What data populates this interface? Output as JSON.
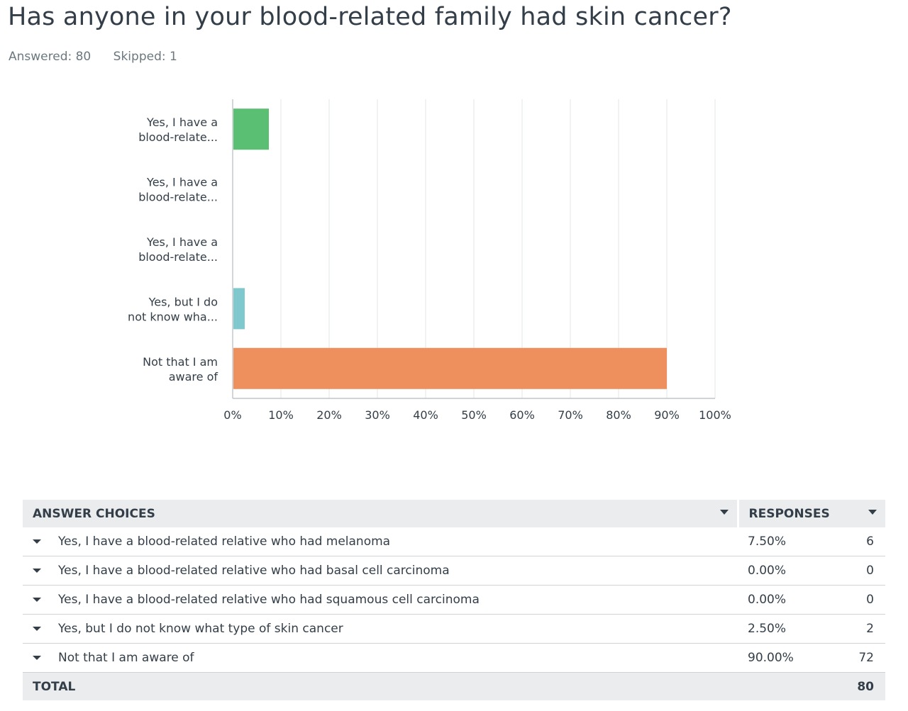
{
  "question": {
    "title": "Has anyone in your blood-related family had skin cancer?",
    "answered": "Answered: 80",
    "skipped": "Skipped: 1"
  },
  "chart_data": {
    "type": "bar",
    "orientation": "horizontal",
    "categories": [
      [
        "Yes, I have a",
        "blood-relate..."
      ],
      [
        "Yes, I have a",
        "blood-relate..."
      ],
      [
        "Yes, I have a",
        "blood-relate..."
      ],
      [
        "Yes, but I do",
        "not know wha..."
      ],
      [
        "Not that I am",
        "aware of"
      ]
    ],
    "values": [
      7.5,
      0,
      0,
      2.5,
      90
    ],
    "colors": [
      "#5bbf73",
      "#5bbf73",
      "#5bbf73",
      "#7ec8ce",
      "#ee905d"
    ],
    "xlim": [
      0,
      100
    ],
    "xticks": [
      "0%",
      "10%",
      "20%",
      "30%",
      "40%",
      "50%",
      "60%",
      "70%",
      "80%",
      "90%",
      "100%"
    ],
    "grid": true
  },
  "table": {
    "headers": {
      "choices": "ANSWER CHOICES",
      "responses": "RESPONSES"
    },
    "rows": [
      {
        "choice": "Yes, I have a blood-related relative who had melanoma",
        "percent": "7.50%",
        "count": "6"
      },
      {
        "choice": "Yes, I have a blood-related relative who had basal cell carcinoma",
        "percent": "0.00%",
        "count": "0"
      },
      {
        "choice": "Yes, I have a blood-related relative who had squamous cell carcinoma",
        "percent": "0.00%",
        "count": "0"
      },
      {
        "choice": "Yes, but I do not know what type of skin cancer",
        "percent": "2.50%",
        "count": "2"
      },
      {
        "choice": "Not that I am aware of",
        "percent": "90.00%",
        "count": "72"
      }
    ],
    "total_label": "TOTAL",
    "total_value": "80"
  },
  "icons": {
    "row_expand": "caret-down-icon",
    "sort": "sort-caret-icon"
  }
}
